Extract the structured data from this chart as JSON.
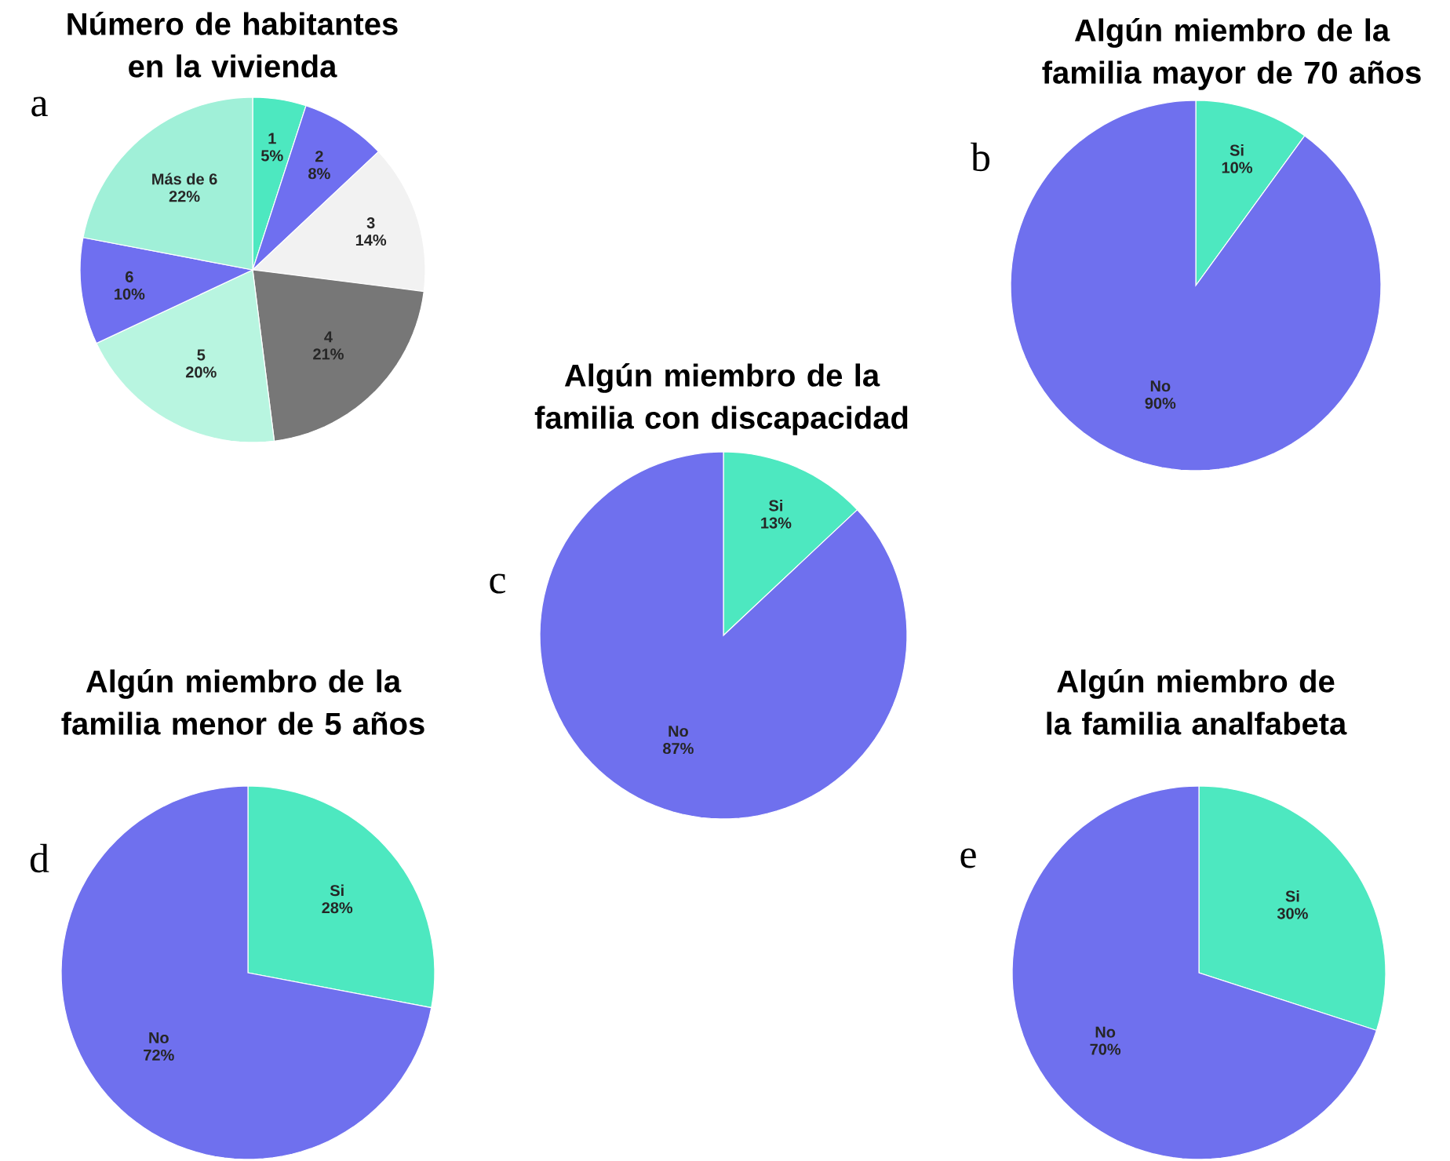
{
  "chart_data": [
    {
      "type": "pie",
      "title": "Número de habitantes en la vivienda",
      "categories": [
        "1",
        "2",
        "3",
        "4",
        "5",
        "6",
        "Más de 6"
      ],
      "values": [
        5,
        8,
        14,
        21,
        20,
        10,
        22
      ],
      "value_labels": [
        "5%",
        "8%",
        "14%",
        "21%",
        "20%",
        "10%",
        "22%"
      ],
      "colors": [
        "#4de8c0",
        "#6f6ff0",
        "#f2f2f2",
        "#777777",
        "#b8f5e0",
        "#6f6ff0",
        "#a0f0d8"
      ],
      "annotations": [
        "a"
      ]
    },
    {
      "type": "pie",
      "title": "Algún miembro de la familia mayor de 70 años",
      "categories": [
        "Si",
        "No"
      ],
      "values": [
        10,
        90
      ],
      "value_labels": [
        "10%",
        "90%"
      ],
      "colors": [
        "#4de8c0",
        "#6f70ee"
      ],
      "annotations": [
        "b"
      ]
    },
    {
      "type": "pie",
      "title": "Algún miembro de la familia con discapacidad",
      "categories": [
        "Si",
        "No"
      ],
      "values": [
        13,
        87
      ],
      "value_labels": [
        "13%",
        "87%"
      ],
      "colors": [
        "#4de8c0",
        "#6f70ee"
      ],
      "annotations": [
        "c"
      ]
    },
    {
      "type": "pie",
      "title": "Algún miembro de la familia menor de 5 años",
      "categories": [
        "Si",
        "No"
      ],
      "values": [
        28,
        72
      ],
      "value_labels": [
        "28%",
        "72%"
      ],
      "colors": [
        "#4de8c0",
        "#6f70ee"
      ],
      "annotations": [
        "d"
      ]
    },
    {
      "type": "pie",
      "title": "Algún miembro de la familia analfabeta",
      "categories": [
        "Si",
        "No"
      ],
      "values": [
        30,
        70
      ],
      "value_labels": [
        "30%",
        "70%"
      ],
      "colors": [
        "#4de8c0",
        "#6f70ee"
      ],
      "annotations": [
        "e"
      ]
    }
  ]
}
